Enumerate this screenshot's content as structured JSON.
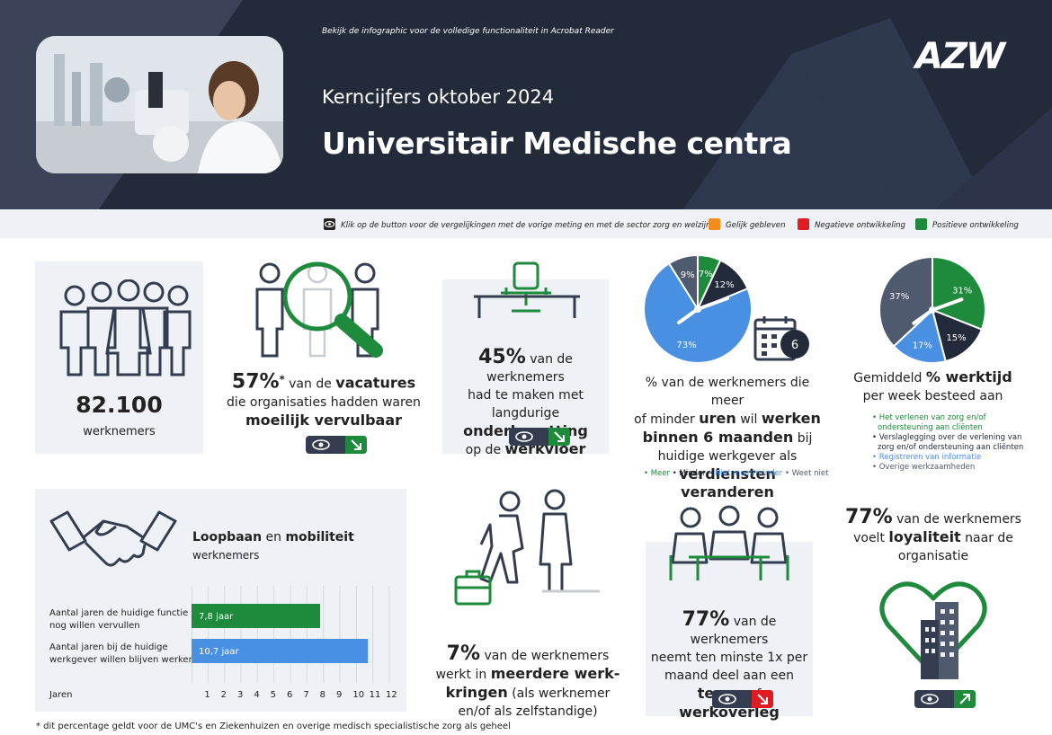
{
  "header": {
    "note": "Bekijk de infographic voor de volledige functionaliteit in Acrobat Reader",
    "subtitle": "Kerncijfers oktober 2024",
    "title": "Universitair Medische centra",
    "logo": "AZW"
  },
  "legend": {
    "info": "Klik op de button voor de vergelijkingen met de vorige meting en met de sector zorg en welzijn.",
    "items": [
      {
        "label": "Gelijk gebleven",
        "color": "#f28c1b"
      },
      {
        "label": "Negatieve ontwikkeling",
        "color": "#e11b22"
      },
      {
        "label": "Positieve ontwikkeling",
        "color": "#1e8a3b"
      }
    ]
  },
  "stats": {
    "employees": {
      "value": "82.100",
      "label": "werknemers"
    },
    "vacancies": {
      "pct": "57%",
      "star": "*",
      "line1": "van de",
      "line1b": "vacatures",
      "line2": "die organisaties hadden waren",
      "line3": "moeilijk vervulbaar",
      "trend": "down-positive"
    },
    "understaffing": {
      "pct": "45%",
      "line1": "van de werknemers",
      "line2": "had te maken met langdurige",
      "line3": "onderbezetting",
      "line4a": "op de",
      "line4b": "werkvloer",
      "trend": "down-positive"
    },
    "hours": {
      "line1": "% van de werknemers die meer",
      "line2a": "of minder",
      "line2b": "uren",
      "line2c": "wil",
      "line2d": "werken",
      "line3a": "binnen 6 maanden",
      "line3b": "bij",
      "line4": "huidige werkgever als",
      "line5": "verdiensten veranderen",
      "calendar_number": "6",
      "legend": [
        "Meer",
        "Minder",
        "Niet meer/minder",
        "Weet niet"
      ]
    },
    "worktime": {
      "line1a": "Gemiddeld",
      "line1b": "% werktijd",
      "line2": "per week besteed aan",
      "legend": [
        "Het verlenen van zorg en/of",
        "ondersteuning aan cliënten",
        "Verslaglegging over de verlening van",
        "zorg en/of ondersteuning aan cliënten",
        "Registreren van informatie",
        "Overige werkzaamheden"
      ]
    },
    "career": {
      "title_a": "Loopbaan",
      "title_b": "en",
      "title_c": "mobiliteit",
      "title_line2": "werknemers",
      "row1_line1": "Aantal jaren de huidige functie",
      "row1_line2": "nog willen vervullen",
      "row2_line1": "Aantal jaren bij de huidige",
      "row2_line2": "werkgever willen blijven werken",
      "axis_label": "Jaren"
    },
    "multiple_jobs": {
      "pct": "7%",
      "line1": "van de werknemers",
      "line2a": "werkt in",
      "line2b": "meerdere werk-",
      "line3a": "kringen",
      "line3b": "(als werknemer",
      "line4": "en/of als zelfstandige)"
    },
    "meeting": {
      "pct": "77%",
      "line1": "van de werknemers",
      "line2": "neemt ten minste 1x per",
      "line3": "maand deel aan een",
      "line4a": "team-",
      "line4b": "of",
      "line4c": "werkoverleg",
      "trend": "down-negative"
    },
    "loyalty": {
      "pct": "77%",
      "line1": "van de werknemers",
      "line2a": "voelt",
      "line2b": "loyaliteit",
      "line2c": "naar de",
      "line3": "organisatie",
      "trend": "up-positive"
    }
  },
  "footnote": "* dit percentage geldt voor de UMC's en Ziekenhuizen en overige medisch specialistische zorg als geheel",
  "chart_data": [
    {
      "type": "pie",
      "labels": [
        "Meer",
        "Minder",
        "Niet meer/minder",
        "Weet niet"
      ],
      "values": [
        7,
        12,
        73,
        9
      ],
      "value_labels": [
        "7%",
        "12%",
        "73%",
        "9%"
      ],
      "colors": [
        "#1e8a3b",
        "#232b3b",
        "#4a90e2",
        "#4f5a6e"
      ]
    },
    {
      "type": "pie",
      "labels": [
        "Het verlenen van zorg en/of ondersteuning aan cliënten",
        "Verslaglegging over de verlening van zorg en/of ondersteuning aan cliënten",
        "Registreren van informatie",
        "Overige werkzaamheden"
      ],
      "values": [
        31,
        15,
        17,
        37
      ],
      "value_labels": [
        "31%",
        "15%",
        "17%",
        "37%"
      ],
      "colors": [
        "#1e8a3b",
        "#232b3b",
        "#4a90e2",
        "#4f5a6e"
      ]
    },
    {
      "type": "bar",
      "orientation": "horizontal",
      "categories": [
        "Aantal jaren de huidige functie nog willen vervullen",
        "Aantal jaren bij de huidige werkgever willen blijven werken"
      ],
      "values": [
        7.8,
        10.7
      ],
      "value_labels": [
        "7,8 jaar",
        "10,7 jaar"
      ],
      "colors": [
        "#1e8a3b",
        "#4a90e2"
      ],
      "xlabel": "Jaren",
      "xlim": [
        0,
        12
      ],
      "xticks": [
        "1",
        "2",
        "3",
        "4",
        "5",
        "6",
        "7",
        "8",
        "9",
        "10",
        "11",
        "12"
      ],
      "grid": true
    }
  ]
}
